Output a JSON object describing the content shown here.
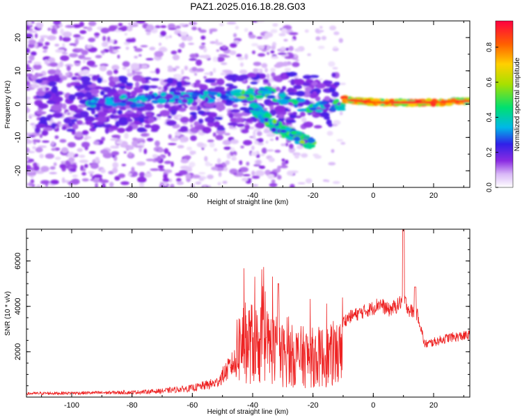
{
  "title": "PAZ1.2025.016.18.28.G03",
  "colors": {
    "snr_line": "#ee2222"
  },
  "chart_data": [
    {
      "type": "heatmap",
      "xlabel": "Height of straight line (km)",
      "ylabel": "Frequency (Hz)",
      "xlim": [
        -115,
        32
      ],
      "ylim": [
        -25,
        25
      ],
      "xticks": [
        -100,
        -80,
        -60,
        -40,
        -20,
        0,
        20
      ],
      "yticks": [
        -20,
        -10,
        0,
        10,
        20
      ],
      "colorbar": {
        "label": "Normalized spectral amplitude",
        "range": [
          0.0,
          0.95
        ],
        "ticks": [
          0.0,
          0.2,
          0.4,
          0.6,
          0.8
        ]
      },
      "ridges": [
        {
          "x": [
            -95,
            -80,
            -60,
            -45,
            -35,
            -20,
            -10
          ],
          "y": [
            0,
            1,
            2,
            2.5,
            3.5,
            -1.5,
            0
          ]
        },
        {
          "x": [
            -40,
            -32,
            -25,
            -20
          ],
          "y": [
            -1,
            -7,
            -10,
            -12
          ]
        },
        {
          "x": [
            -10,
            0,
            10,
            20,
            32
          ],
          "y": [
            1.5,
            0.5,
            0.5,
            0.5,
            1
          ]
        }
      ]
    },
    {
      "type": "line",
      "xlabel": "Height of straight line (km)",
      "ylabel": "SNR (10 * v/v)",
      "xlim": [
        -115,
        32
      ],
      "ylim": [
        0,
        7400
      ],
      "xticks": [
        -100,
        -80,
        -60,
        -40,
        -20,
        0,
        20
      ],
      "yticks": [
        2000,
        4000,
        6000
      ],
      "envelope": {
        "x": [
          -115,
          -80,
          -70,
          -60,
          -52,
          -46,
          -44,
          -40,
          -33,
          -30,
          -20,
          -11,
          -10,
          -8,
          0,
          2,
          5,
          8,
          10,
          12,
          14,
          15,
          17,
          20,
          25,
          32
        ],
        "y": [
          150,
          200,
          260,
          380,
          600,
          1500,
          2200,
          2200,
          2000,
          1700,
          1600,
          1700,
          3300,
          3500,
          3900,
          4100,
          3800,
          4000,
          4300,
          3800,
          3700,
          3500,
          2300,
          2400,
          2600,
          2700
        ]
      }
    }
  ]
}
